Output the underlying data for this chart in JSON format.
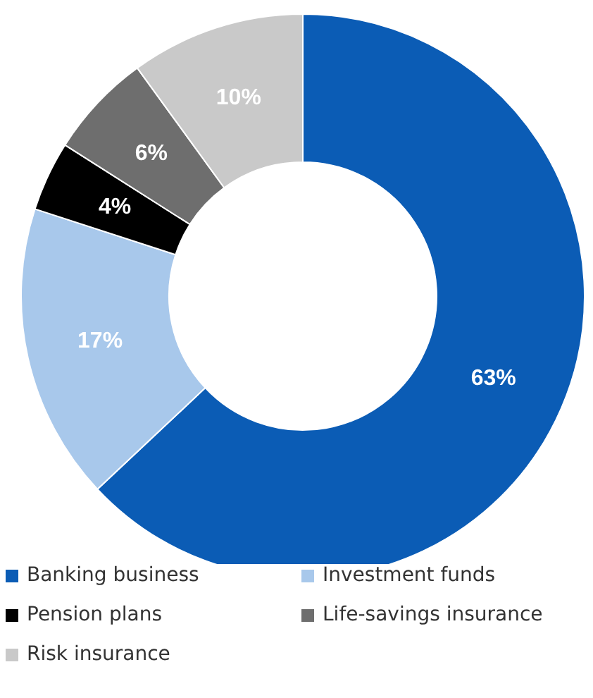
{
  "chart_data": {
    "type": "donut",
    "categories": [
      "Banking business",
      "Investment funds",
      "Pension plans",
      "Life-savings insurance",
      "Risk insurance"
    ],
    "values": [
      63,
      17,
      4,
      6,
      10
    ],
    "colors": [
      "#0b5cb5",
      "#a8c8eb",
      "#000000",
      "#6e6e6e",
      "#c9c9c9"
    ],
    "value_labels": [
      "63%",
      "17%",
      "4%",
      "6%",
      "10%"
    ],
    "legend": "bottom"
  }
}
